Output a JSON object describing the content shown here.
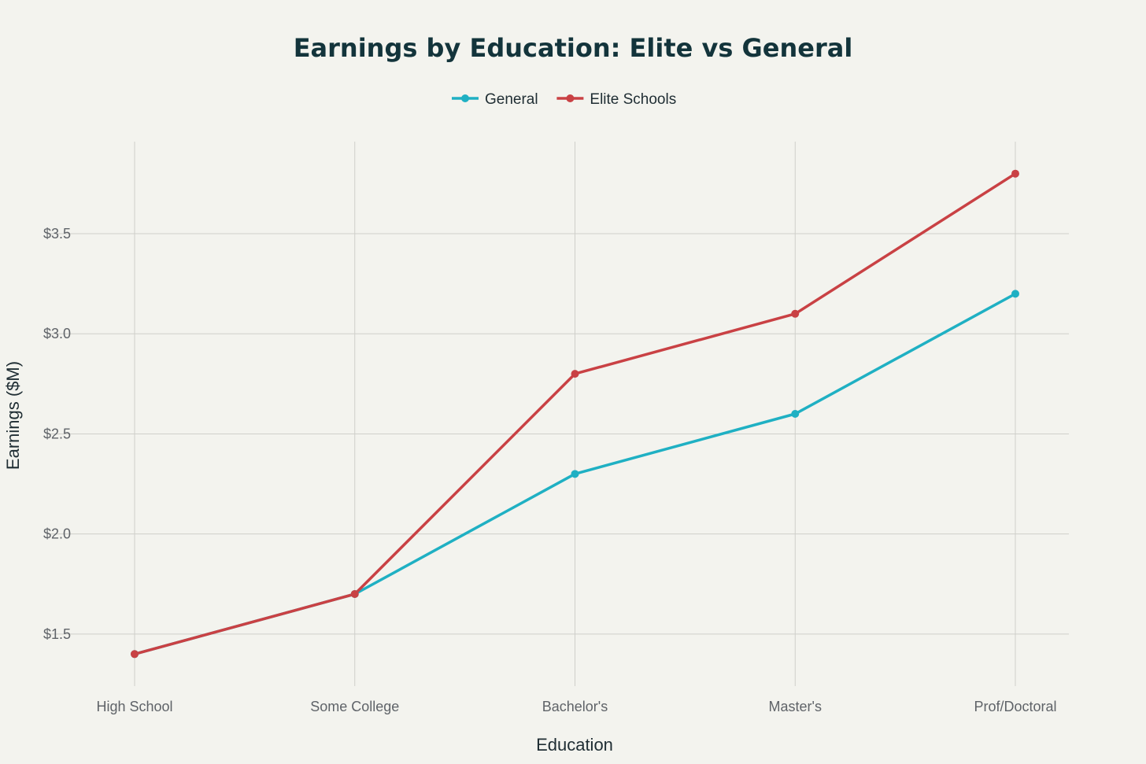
{
  "chart_data": {
    "type": "line",
    "title": "Earnings by Education: Elite vs General",
    "xlabel": "Education",
    "ylabel": "Earnings ($M)",
    "categories": [
      "High School",
      "Some College",
      "Bachelor's",
      "Master's",
      "Prof/Doctoral"
    ],
    "series": [
      {
        "name": "General",
        "color": "#1fb0c3",
        "values": [
          1.4,
          1.7,
          2.3,
          2.6,
          3.2
        ]
      },
      {
        "name": "Elite Schools",
        "color": "#c94144",
        "values": [
          1.4,
          1.7,
          2.8,
          3.1,
          3.8
        ]
      }
    ],
    "ylim": [
      1.24,
      3.96
    ],
    "yticks": [
      1.5,
      2.0,
      2.5,
      3.0,
      3.5
    ],
    "ytick_labels": [
      "$1.5",
      "$2.0",
      "$2.5",
      "$3.0",
      "$3.5"
    ],
    "grid": true,
    "legend_position": "top-center"
  }
}
